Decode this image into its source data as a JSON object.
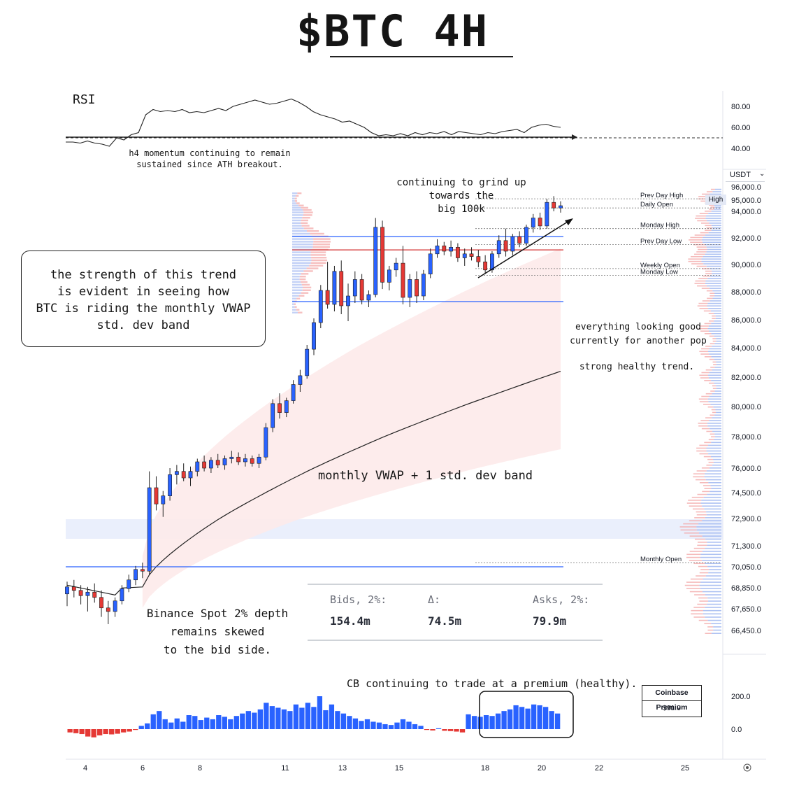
{
  "title": "$BTC 4H",
  "annotations": {
    "rsi_label": "RSI",
    "rsi_note_line1": "h4 momentum continuing to remain",
    "rsi_note_line2": "sustained since ATH breakout.",
    "callout_line1": "the strength of this trend",
    "callout_line2": "is evident in seeing how",
    "callout_line3": "BTC is riding the monthly VWAP",
    "callout_line4": "std. dev band",
    "grind_line1": "continuing to grind up",
    "grind_line2": "towards the",
    "grind_line3": "big 100k",
    "good_line1": "everything looking good",
    "good_line2": "currently for another pop",
    "healthy": "strong healthy trend.",
    "vwap_label": "monthly VWAP + 1 std. dev band",
    "binance_line1": "Binance Spot 2% depth",
    "binance_line2": "remains skewed",
    "binance_line3": "to the bid side.",
    "cb_note": "CB continuing to trade at a premium (healthy)."
  },
  "levels": [
    {
      "name": "Prev Day High",
      "price": 95100
    },
    {
      "name": "Daily Open",
      "price": 94300
    },
    {
      "name": "Monday High",
      "price": 92700
    },
    {
      "name": "Prev Day Low",
      "price": 91500
    },
    {
      "name": "Weekly Open",
      "price": 89700
    },
    {
      "name": "Monday Low",
      "price": 89200
    },
    {
      "name": "Monthly Open",
      "price": 70300
    }
  ],
  "currency_label": "USDT",
  "high_tag": "High",
  "depth": {
    "bids_label": "Bids, 2%:",
    "bids_value": "154.4m",
    "delta_label": "Δ:",
    "delta_value": "74.5m",
    "asks_label": "Asks, 2%:",
    "asks_value": "79.9m"
  },
  "cb_premium": {
    "title": "Coinbase Premium",
    "value": "$91.9"
  },
  "colors": {
    "up": "#2962ff",
    "down": "#e53935",
    "level_blue": "#2962ff",
    "level_red": "#d32f2f",
    "band": "#fde8e8"
  },
  "chart_data": [
    {
      "type": "line",
      "title": "RSI",
      "y_ticks": [
        "80.00",
        "60.00",
        "40.00"
      ],
      "ylim": [
        30,
        95
      ],
      "reference_line": 50,
      "values": [
        46,
        46,
        45,
        47,
        45,
        44,
        42,
        50,
        48,
        53,
        55,
        72,
        77,
        75,
        76,
        75,
        77,
        74,
        75,
        74,
        76,
        78,
        76,
        80,
        82,
        84,
        86,
        84,
        82,
        83,
        85,
        87,
        84,
        80,
        75,
        72,
        70,
        68,
        65,
        66,
        63,
        60,
        55,
        52,
        53,
        52,
        54,
        52,
        55,
        53,
        55,
        54,
        56,
        53,
        56,
        55,
        54,
        53,
        55,
        54,
        56,
        57,
        58,
        55,
        60,
        62,
        63,
        61,
        60
      ]
    },
    {
      "type": "candlestick",
      "price_ticks": [
        "96,000.0",
        "95,000.0",
        "94,000.0",
        "92,000.0",
        "90,000.0",
        "88,000.0",
        "86,000.0",
        "84,000.0",
        "82,000.0",
        "80,000.0",
        "78,000.0",
        "76,000.0",
        "74,500.0",
        "72,900.0",
        "71,300.0",
        "70,050.0",
        "68,850.0",
        "67,650.0",
        "66,450.0"
      ],
      "x_ticks": [
        "4",
        "6",
        "8",
        "11",
        "13",
        "15",
        "18",
        "20",
        "22",
        "25"
      ],
      "candles": [
        [
          68500,
          69200,
          67800,
          68900
        ],
        [
          68900,
          69300,
          68300,
          68700
        ],
        [
          68700,
          69000,
          67900,
          68400
        ],
        [
          68400,
          68900,
          67500,
          68600
        ],
        [
          68600,
          69100,
          68000,
          68300
        ],
        [
          68300,
          68700,
          67200,
          67700
        ],
        [
          67700,
          68100,
          66800,
          67500
        ],
        [
          67500,
          68300,
          67200,
          68100
        ],
        [
          68100,
          69000,
          67900,
          68800
        ],
        [
          68800,
          69600,
          68600,
          69300
        ],
        [
          69300,
          70100,
          69000,
          69900
        ],
        [
          69900,
          70300,
          69400,
          69800
        ],
        [
          69800,
          75800,
          69600,
          74800
        ],
        [
          74800,
          75500,
          73400,
          73800
        ],
        [
          73800,
          74600,
          73000,
          74300
        ],
        [
          74300,
          76000,
          74000,
          75600
        ],
        [
          75600,
          76200,
          75000,
          75800
        ],
        [
          75800,
          76300,
          75200,
          75400
        ],
        [
          75400,
          76100,
          74900,
          75800
        ],
        [
          75800,
          76600,
          75500,
          76400
        ],
        [
          76400,
          76800,
          75800,
          76000
        ],
        [
          76000,
          76700,
          75700,
          76500
        ],
        [
          76500,
          76900,
          76000,
          76200
        ],
        [
          76200,
          76800,
          75900,
          76600
        ],
        [
          76600,
          77100,
          76300,
          76700
        ],
        [
          76700,
          77000,
          76200,
          76400
        ],
        [
          76400,
          76900,
          76100,
          76600
        ],
        [
          76600,
          76800,
          76100,
          76300
        ],
        [
          76300,
          76900,
          76000,
          76700
        ],
        [
          76700,
          78900,
          76500,
          78600
        ],
        [
          78600,
          80500,
          78300,
          80200
        ],
        [
          80200,
          80900,
          79200,
          79600
        ],
        [
          79600,
          80600,
          79300,
          80400
        ],
        [
          80400,
          81800,
          80200,
          81500
        ],
        [
          81500,
          82500,
          81000,
          82100
        ],
        [
          82100,
          84200,
          81900,
          83900
        ],
        [
          83900,
          86100,
          83500,
          85800
        ],
        [
          85800,
          88500,
          85400,
          88100
        ],
        [
          88100,
          90200,
          86800,
          87100
        ],
        [
          87100,
          89900,
          86600,
          89500
        ],
        [
          89500,
          90300,
          86400,
          87000
        ],
        [
          87000,
          88600,
          85900,
          87700
        ],
        [
          87700,
          89500,
          87200,
          88900
        ],
        [
          88900,
          89300,
          87100,
          87400
        ],
        [
          87400,
          88100,
          86900,
          87800
        ],
        [
          87800,
          93500,
          87600,
          92800
        ],
        [
          92800,
          93300,
          88200,
          88700
        ],
        [
          88700,
          89900,
          88100,
          89600
        ],
        [
          89600,
          90500,
          89100,
          90100
        ],
        [
          90100,
          91400,
          87100,
          87600
        ],
        [
          87600,
          89300,
          86900,
          88900
        ],
        [
          88900,
          89500,
          87200,
          87700
        ],
        [
          87700,
          89600,
          87400,
          89300
        ],
        [
          89300,
          91200,
          89000,
          90800
        ],
        [
          90800,
          91900,
          90500,
          91400
        ],
        [
          91400,
          91700,
          90700,
          91000
        ],
        [
          91000,
          91800,
          90600,
          91300
        ],
        [
          91300,
          91600,
          90200,
          90500
        ],
        [
          90500,
          91200,
          89900,
          90800
        ],
        [
          90800,
          91300,
          90300,
          90600
        ],
        [
          90600,
          91100,
          89800,
          90200
        ],
        [
          90200,
          90700,
          89300,
          89600
        ],
        [
          89600,
          91000,
          89400,
          90800
        ],
        [
          90800,
          92200,
          90500,
          91800
        ],
        [
          91800,
          92700,
          90600,
          91000
        ],
        [
          91000,
          92300,
          90700,
          92100
        ],
        [
          92100,
          92500,
          91300,
          91600
        ],
        [
          91600,
          93000,
          91400,
          92800
        ],
        [
          92800,
          93800,
          92400,
          93500
        ],
        [
          93500,
          93900,
          92600,
          92900
        ],
        [
          92900,
          95100,
          92700,
          94800
        ],
        [
          94800,
          95300,
          94000,
          94300
        ],
        [
          94300,
          94900,
          93900,
          94500
        ]
      ]
    },
    {
      "type": "bar",
      "title": "Coinbase Premium",
      "y_ticks": [
        "200.0",
        "0.0"
      ],
      "ylim": [
        -50,
        250
      ],
      "values": [
        -20,
        -25,
        -30,
        -45,
        -50,
        -38,
        -30,
        -32,
        -28,
        -20,
        -15,
        -5,
        20,
        35,
        90,
        110,
        60,
        40,
        65,
        45,
        85,
        80,
        55,
        70,
        60,
        85,
        75,
        60,
        80,
        95,
        110,
        100,
        120,
        160,
        140,
        130,
        120,
        110,
        150,
        130,
        160,
        135,
        200,
        115,
        150,
        110,
        95,
        80,
        65,
        50,
        60,
        45,
        40,
        30,
        25,
        40,
        60,
        45,
        30,
        20,
        -5,
        -8,
        5,
        -10,
        -12,
        -15,
        -20,
        90,
        80,
        75,
        85,
        80,
        95,
        110,
        120,
        145,
        135,
        125,
        150,
        145,
        135,
        110,
        95
      ]
    }
  ]
}
